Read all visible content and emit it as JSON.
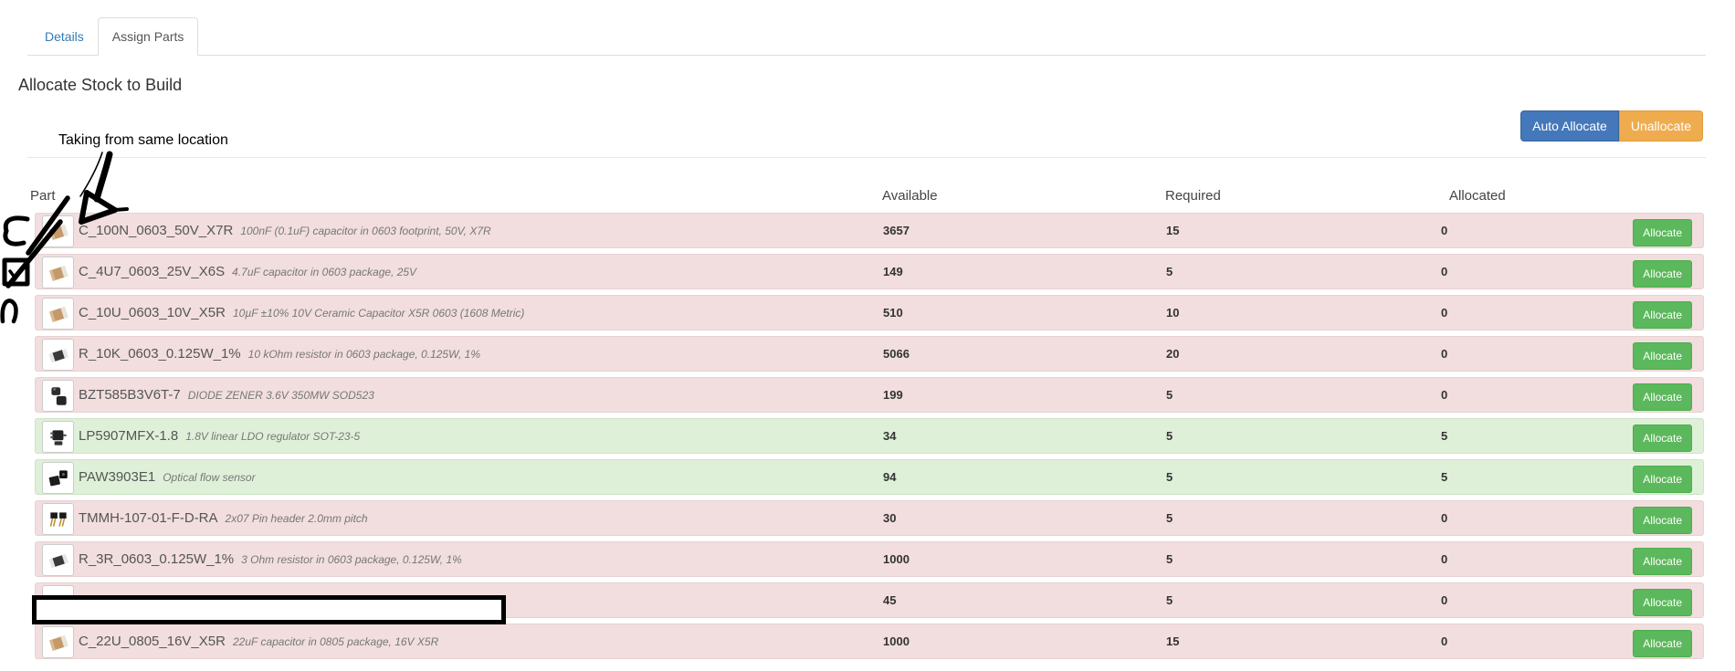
{
  "tabs": [
    {
      "label": "Details",
      "active": false
    },
    {
      "label": "Assign Parts",
      "active": true
    }
  ],
  "heading": "Allocate Stock to Build",
  "annotation": {
    "note": "Taking from same location"
  },
  "toolbar": {
    "auto_allocate_label": "Auto Allocate",
    "unallocate_label": "Unallocate"
  },
  "colors": {
    "primary": "#4478ba",
    "warning": "#efac4e",
    "success": "#5cb85c",
    "row_insufficient": "#f2dede",
    "row_allocated": "#dff0d8",
    "inactive_tab_link": "#337ab7"
  },
  "table": {
    "columns": [
      "Part",
      "Available",
      "Required",
      "Allocated"
    ],
    "allocate_label": "Allocate",
    "rows": [
      {
        "name": "C_100N_0603_50V_X7R",
        "description": "100nF (0.1uF) capacitor in 0603 footprint, 50V, X7R",
        "available": "3657",
        "required": "15",
        "allocated": "0",
        "status": "insufficient",
        "icon": "capacitor-photo",
        "redacted": false
      },
      {
        "name": "C_4U7_0603_25V_X6S",
        "description": "4.7uF capacitor in 0603 package, 25V",
        "available": "149",
        "required": "5",
        "allocated": "0",
        "status": "insufficient",
        "icon": "capacitor-photo",
        "redacted": false
      },
      {
        "name": "C_10U_0603_10V_X5R",
        "description": "10µF ±10% 10V Ceramic Capacitor X5R 0603 (1608 Metric)",
        "available": "510",
        "required": "10",
        "allocated": "0",
        "status": "insufficient",
        "icon": "capacitor-photo",
        "redacted": false
      },
      {
        "name": "R_10K_0603_0.125W_1%",
        "description": "10 kOhm resistor in 0603 package, 0.125W, 1%",
        "available": "5066",
        "required": "20",
        "allocated": "0",
        "status": "insufficient",
        "icon": "resistor-photo",
        "redacted": false
      },
      {
        "name": "BZT585B3V6T-7",
        "description": "DIODE ZENER 3.6V 350MW SOD523",
        "available": "199",
        "required": "5",
        "allocated": "0",
        "status": "insufficient",
        "icon": "diode-photo",
        "redacted": false
      },
      {
        "name": "LP5907MFX-1.8",
        "description": "1.8V linear LDO regulator SOT-23-5",
        "available": "34",
        "required": "5",
        "allocated": "5",
        "status": "allocated",
        "icon": "regulator-photo",
        "redacted": false
      },
      {
        "name": "PAW3903E1",
        "description": "Optical flow sensor",
        "available": "94",
        "required": "5",
        "allocated": "5",
        "status": "allocated",
        "icon": "sensor-photo",
        "redacted": false
      },
      {
        "name": "TMMH-107-01-F-D-RA",
        "description": "2x07 Pin header 2.0mm pitch",
        "available": "30",
        "required": "5",
        "allocated": "0",
        "status": "insufficient",
        "icon": "pin-header-photo",
        "redacted": false
      },
      {
        "name": "R_3R_0603_0.125W_1%",
        "description": "3 Ohm resistor in 0603 package, 0.125W, 1%",
        "available": "1000",
        "required": "5",
        "allocated": "0",
        "status": "insufficient",
        "icon": "resistor-photo",
        "redacted": false
      },
      {
        "name": "",
        "description": "",
        "available": "45",
        "required": "5",
        "allocated": "0",
        "status": "insufficient",
        "icon": "hidden-photo",
        "redacted": true
      },
      {
        "name": "C_22U_0805_16V_X5R",
        "description": "22uF capacitor in 0805 package, 16V X5R",
        "available": "1000",
        "required": "15",
        "allocated": "0",
        "status": "insufficient",
        "icon": "capacitor-photo",
        "redacted": false
      }
    ]
  }
}
